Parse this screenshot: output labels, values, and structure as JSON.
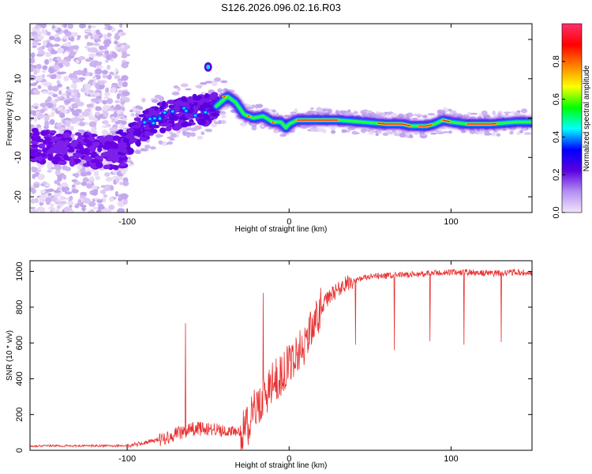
{
  "title": "S126.2026.096.02.16.R03",
  "chart_data": [
    {
      "type": "heatmap",
      "name": "spectrogram",
      "xlabel": "Height of straight line (km)",
      "ylabel": "Frequency (Hz)",
      "xlim": [
        -160,
        150
      ],
      "ylim": [
        -24,
        24
      ],
      "xticks": [
        -100,
        0,
        100
      ],
      "yticks": [
        -20,
        -10,
        0,
        10,
        20
      ],
      "ridge": {
        "x": [
          -100,
          -90,
          -80,
          -70,
          -60,
          -52,
          -45,
          -38,
          -33,
          -28,
          -22,
          -16,
          -10,
          -5,
          -2,
          0,
          5,
          15,
          30,
          45,
          60,
          70,
          75,
          80,
          85,
          90,
          95,
          100,
          110,
          125,
          140,
          150
        ],
        "y": [
          -6,
          -2,
          0,
          1,
          2,
          2,
          3,
          5.5,
          4,
          1,
          0,
          0.5,
          -1,
          -1,
          -2.5,
          -1.5,
          -0.5,
          -0.5,
          -0.5,
          -1,
          -1.5,
          -1.5,
          -2,
          -2,
          -2,
          -1.5,
          -0.5,
          -1,
          -1.5,
          -1.5,
          -1,
          -1
        ]
      },
      "colorbar": {
        "label": "Normalized spectral amplitude",
        "range": [
          0,
          1
        ],
        "ticks": [
          "0.0",
          "0.2",
          "0.4",
          "0.6",
          "0.8"
        ],
        "tick_values": [
          0,
          0.2,
          0.4,
          0.6,
          0.8
        ],
        "colors": [
          "#f2e6fa",
          "#b48ef2",
          "#5a00e0",
          "#0000ff",
          "#00ffff",
          "#00ff00",
          "#ffff00",
          "#ff8000",
          "#ff0000",
          "#ff3070"
        ]
      }
    },
    {
      "type": "line",
      "name": "snr",
      "xlabel": "Height of straight line (km)",
      "ylabel": "SNR (10 * v/v)",
      "xlim": [
        -160,
        150
      ],
      "ylim": [
        0,
        1060
      ],
      "xticks": [
        -100,
        0,
        100
      ],
      "yticks": [
        0,
        200,
        400,
        600,
        800,
        1000
      ],
      "color": "#e83030",
      "trend": {
        "x": [
          -160,
          -100,
          -90,
          -80,
          -70,
          -60,
          -50,
          -40,
          -30,
          -25,
          -20,
          -15,
          -10,
          -5,
          0,
          5,
          10,
          15,
          20,
          25,
          30,
          35,
          40,
          50,
          60,
          70,
          80,
          90,
          100,
          110,
          120,
          130,
          140,
          150
        ],
        "y": [
          25,
          25,
          40,
          60,
          90,
          120,
          120,
          110,
          100,
          150,
          250,
          300,
          380,
          420,
          480,
          550,
          600,
          700,
          800,
          860,
          900,
          930,
          950,
          970,
          975,
          980,
          985,
          990,
          995,
          995,
          990,
          990,
          995,
          990
        ]
      },
      "spikes": [
        {
          "x": -64,
          "y": 710
        },
        {
          "x": -20,
          "y": 320
        },
        {
          "x": -16,
          "y": 880
        },
        {
          "x": 41,
          "y": 590
        },
        {
          "x": 65,
          "y": 560
        },
        {
          "x": 87,
          "y": 610
        },
        {
          "x": 108,
          "y": 590
        },
        {
          "x": 131,
          "y": 605
        }
      ]
    }
  ]
}
